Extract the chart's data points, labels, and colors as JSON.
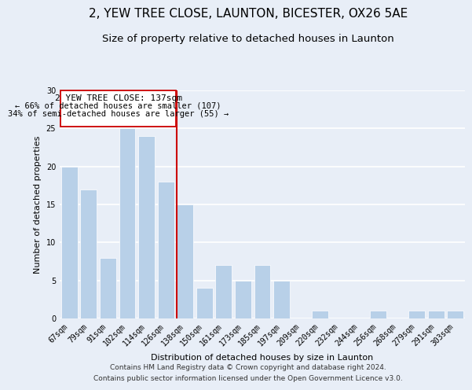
{
  "title": "2, YEW TREE CLOSE, LAUNTON, BICESTER, OX26 5AE",
  "subtitle": "Size of property relative to detached houses in Launton",
  "xlabel": "Distribution of detached houses by size in Launton",
  "ylabel": "Number of detached properties",
  "bar_labels": [
    "67sqm",
    "79sqm",
    "91sqm",
    "102sqm",
    "114sqm",
    "126sqm",
    "138sqm",
    "150sqm",
    "161sqm",
    "173sqm",
    "185sqm",
    "197sqm",
    "209sqm",
    "220sqm",
    "232sqm",
    "244sqm",
    "256sqm",
    "268sqm",
    "279sqm",
    "291sqm",
    "303sqm"
  ],
  "bar_values": [
    20,
    17,
    8,
    25,
    24,
    18,
    15,
    4,
    7,
    5,
    7,
    5,
    0,
    1,
    0,
    0,
    1,
    0,
    1,
    1,
    1
  ],
  "bar_color": "#b8d0e8",
  "vline_color": "#cc0000",
  "ylim": [
    0,
    30
  ],
  "yticks": [
    0,
    5,
    10,
    15,
    20,
    25,
    30
  ],
  "annotation_title": "2 YEW TREE CLOSE: 137sqm",
  "annotation_line1": "← 66% of detached houses are smaller (107)",
  "annotation_line2": "34% of semi-detached houses are larger (55) →",
  "footer1": "Contains HM Land Registry data © Crown copyright and database right 2024.",
  "footer2": "Contains public sector information licensed under the Open Government Licence v3.0.",
  "bg_color": "#e8eef7",
  "plot_bg_color": "#e8eef7",
  "grid_color": "#ffffff",
  "title_fontsize": 11,
  "subtitle_fontsize": 9.5,
  "label_fontsize": 8,
  "tick_fontsize": 7,
  "footer_fontsize": 6.5,
  "ann_title_fontsize": 8,
  "ann_text_fontsize": 7.5
}
